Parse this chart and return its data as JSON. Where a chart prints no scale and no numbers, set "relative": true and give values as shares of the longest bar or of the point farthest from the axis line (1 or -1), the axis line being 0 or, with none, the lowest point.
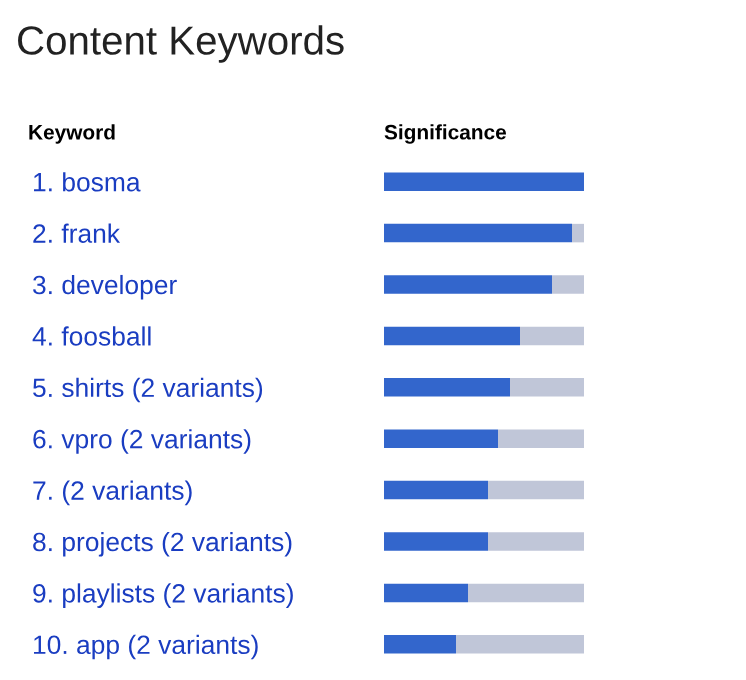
{
  "chart_data": {
    "type": "bar",
    "orientation": "horizontal",
    "stacked": true,
    "relative": true,
    "title": "Content Keywords",
    "categories": [
      "1. bosma",
      "2. frank",
      "3. developer",
      "4. foosball",
      "5. shirts (2 variants)",
      "6. vpro (2 variants)",
      "7. (2 variants)",
      "8. projects (2 variants)",
      "9. playlists (2 variants)",
      "10. app (2 variants)"
    ],
    "series": [
      {
        "color": "#3366cc",
        "values": [
          1.0,
          0.94,
          0.84,
          0.68,
          0.63,
          0.57,
          0.52,
          0.52,
          0.42,
          0.36
        ]
      },
      {
        "color": "#c0c6d8",
        "values": [
          0.0,
          0.06,
          0.16,
          0.32,
          0.37,
          0.43,
          0.48,
          0.48,
          0.58,
          0.64
        ]
      }
    ],
    "annotations": [
      "Keyword",
      "Significance"
    ]
  }
}
